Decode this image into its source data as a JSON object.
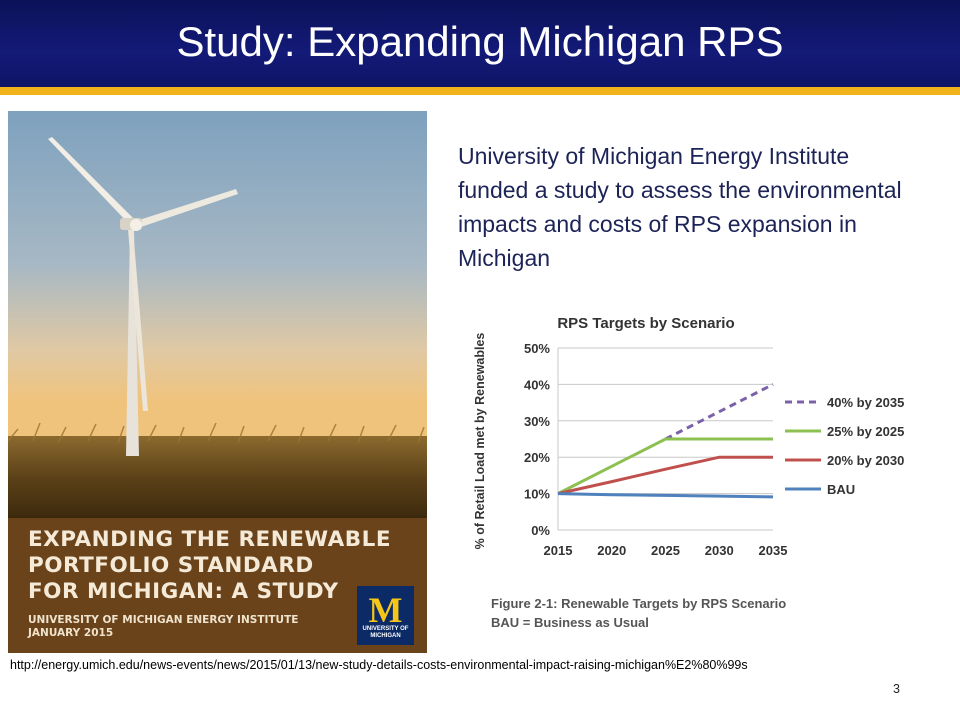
{
  "slide": {
    "title": "Study: Expanding Michigan RPS",
    "body": "University of Michigan Energy Institute funded a study to assess the environmental impacts and costs of RPS expansion in Michigan",
    "source_url": "http://energy.umich.edu/news-events/news/2015/01/13/new-study-details-costs-environmental-impact-raising-michigan%E2%80%99s",
    "page_number": "3"
  },
  "cover": {
    "title_lines": [
      "EXPANDING THE RENEWABLE",
      "PORTFOLIO STANDARD",
      "FOR MICHIGAN: A STUDY"
    ],
    "subtitle_lines": [
      "UNIVERSITY OF MICHIGAN ENERGY INSTITUTE",
      "JANUARY 2015"
    ],
    "logo_letter": "M",
    "logo_text_lines": [
      "UNIVERSITY OF",
      "MICHIGAN"
    ]
  },
  "chart_data": {
    "type": "line",
    "title": "RPS Targets by Scenario",
    "ylabel": "% of Retail Load met by Renewables",
    "xlabel": "",
    "x": [
      2015,
      2020,
      2025,
      2030,
      2035
    ],
    "xticks": [
      "2015",
      "2020",
      "2025",
      "2030",
      "2035"
    ],
    "yticks": [
      "0%",
      "10%",
      "20%",
      "30%",
      "40%",
      "50%"
    ],
    "ylim": [
      0,
      50
    ],
    "grid": true,
    "legend_position": "right",
    "series": [
      {
        "name": "40% by 2035",
        "color": "#7b61a8",
        "dashed": true,
        "values": [
          10,
          17.5,
          25,
          32.5,
          40
        ]
      },
      {
        "name": "25% by 2025",
        "color": "#8cc152",
        "dashed": false,
        "values": [
          10,
          17.5,
          25,
          25,
          25
        ]
      },
      {
        "name": "20% by 2030",
        "color": "#c0504d",
        "dashed": false,
        "values": [
          10,
          13.3,
          16.7,
          20,
          20
        ]
      },
      {
        "name": "BAU",
        "color": "#4f81bd",
        "dashed": false,
        "values": [
          10,
          9.7,
          9.5,
          9.3,
          9.1
        ]
      }
    ],
    "caption_lines": [
      "Figure 2-1: Renewable Targets by RPS Scenario",
      "BAU = Business as Usual"
    ]
  }
}
